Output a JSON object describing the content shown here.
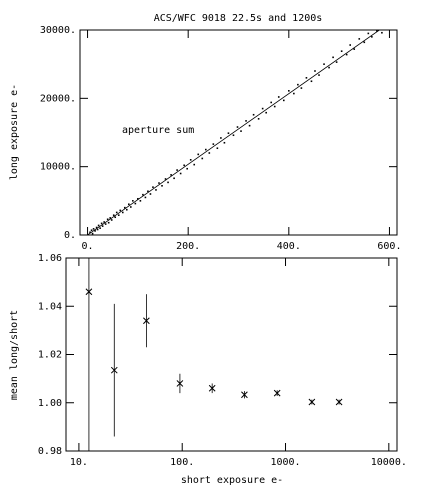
{
  "chart_data": [
    {
      "type": "scatter",
      "title": "ACS/WFC 9018 22.5s and 1200s",
      "y_label": "long exposure e-",
      "annotation": "aperture sum",
      "xlim": [
        -15,
        615
      ],
      "ylim": [
        0,
        30000
      ],
      "xticks": [
        {
          "value": 0,
          "label": "0."
        },
        {
          "value": 200,
          "label": "200."
        },
        {
          "value": 400,
          "label": "400."
        },
        {
          "value": 600,
          "label": "600."
        }
      ],
      "yticks": [
        {
          "value": 0,
          "label": "0."
        },
        {
          "value": 10000,
          "label": "10000."
        },
        {
          "value": 20000,
          "label": "20000."
        },
        {
          "value": 30000,
          "label": "30000."
        }
      ],
      "series": [
        {
          "type": "scatter",
          "color": "#000000",
          "x": [
            5,
            8,
            10,
            12,
            15,
            18,
            20,
            22,
            25,
            28,
            30,
            33,
            36,
            40,
            42,
            45,
            48,
            52,
            55,
            58,
            62,
            65,
            70,
            74,
            78,
            82,
            86,
            90,
            95,
            100,
            105,
            110,
            115,
            120,
            125,
            130,
            136,
            142,
            148,
            155,
            160,
            166,
            172,
            178,
            185,
            192,
            198,
            205,
            212,
            220,
            228,
            235,
            242,
            250,
            258,
            265,
            272,
            280,
            290,
            298,
            305,
            315,
            322,
            330,
            340,
            348,
            355,
            365,
            372,
            380,
            390,
            400,
            410,
            418,
            425,
            435,
            445,
            452,
            460,
            470,
            480,
            488,
            495,
            505,
            515,
            522,
            530,
            540,
            550,
            558,
            565,
            575,
            585
          ],
          "values": [
            400,
            700,
            200,
            900,
            600,
            1100,
            800,
            1400,
            1000,
            1700,
            1300,
            1900,
            1600,
            2300,
            1800,
            2500,
            2200,
            2900,
            2600,
            3300,
            2900,
            3600,
            3300,
            4000,
            3700,
            4500,
            4100,
            5000,
            4600,
            5300,
            5000,
            5900,
            5500,
            6400,
            6000,
            7000,
            6600,
            7600,
            7200,
            8200,
            7700,
            8800,
            8300,
            9500,
            9000,
            10200,
            9700,
            11000,
            10300,
            11800,
            11200,
            12500,
            12000,
            13300,
            12700,
            14200,
            13500,
            14900,
            14600,
            15800,
            15200,
            16700,
            16000,
            17600,
            17000,
            18500,
            17900,
            19400,
            18800,
            20200,
            19700,
            21100,
            20700,
            22000,
            21500,
            23000,
            22500,
            24000,
            23400,
            25000,
            24500,
            26000,
            25300,
            26900,
            26400,
            27800,
            27200,
            28700,
            28200,
            29500,
            29000,
            29900,
            29600
          ]
        },
        {
          "type": "line",
          "color": "#000000",
          "x": [
            0,
            580
          ],
          "values": [
            0,
            30000
          ]
        }
      ]
    },
    {
      "type": "errorbar",
      "x_label": "short exposure e-",
      "y_label": "mean long/short",
      "xlog": true,
      "xlim": [
        7.5,
        12000
      ],
      "ylim": [
        0.98,
        1.06
      ],
      "xticks": [
        {
          "value": 10,
          "label": "10."
        },
        {
          "value": 100,
          "label": "100."
        },
        {
          "value": 1000,
          "label": "1000."
        },
        {
          "value": 10000,
          "label": "10000."
        }
      ],
      "yticks": [
        0.98,
        {
          "value": 1,
          "label": "1.00"
        },
        1.02,
        1.04,
        1.06
      ],
      "series": [
        {
          "type": "errorbar",
          "color": "#000000",
          "x": [
            12.5,
            22,
            45,
            95,
            195,
            400,
            830,
            1800,
            3300
          ],
          "values": [
            1.046,
            1.0135,
            1.034,
            1.008,
            1.006,
            1.0033,
            1.004,
            1.0003,
            1.0003
          ],
          "errors": [
            0.07,
            0.0275,
            0.011,
            0.004,
            0.002,
            0.0015,
            0.0012,
            0.001,
            0.001
          ]
        }
      ]
    }
  ]
}
